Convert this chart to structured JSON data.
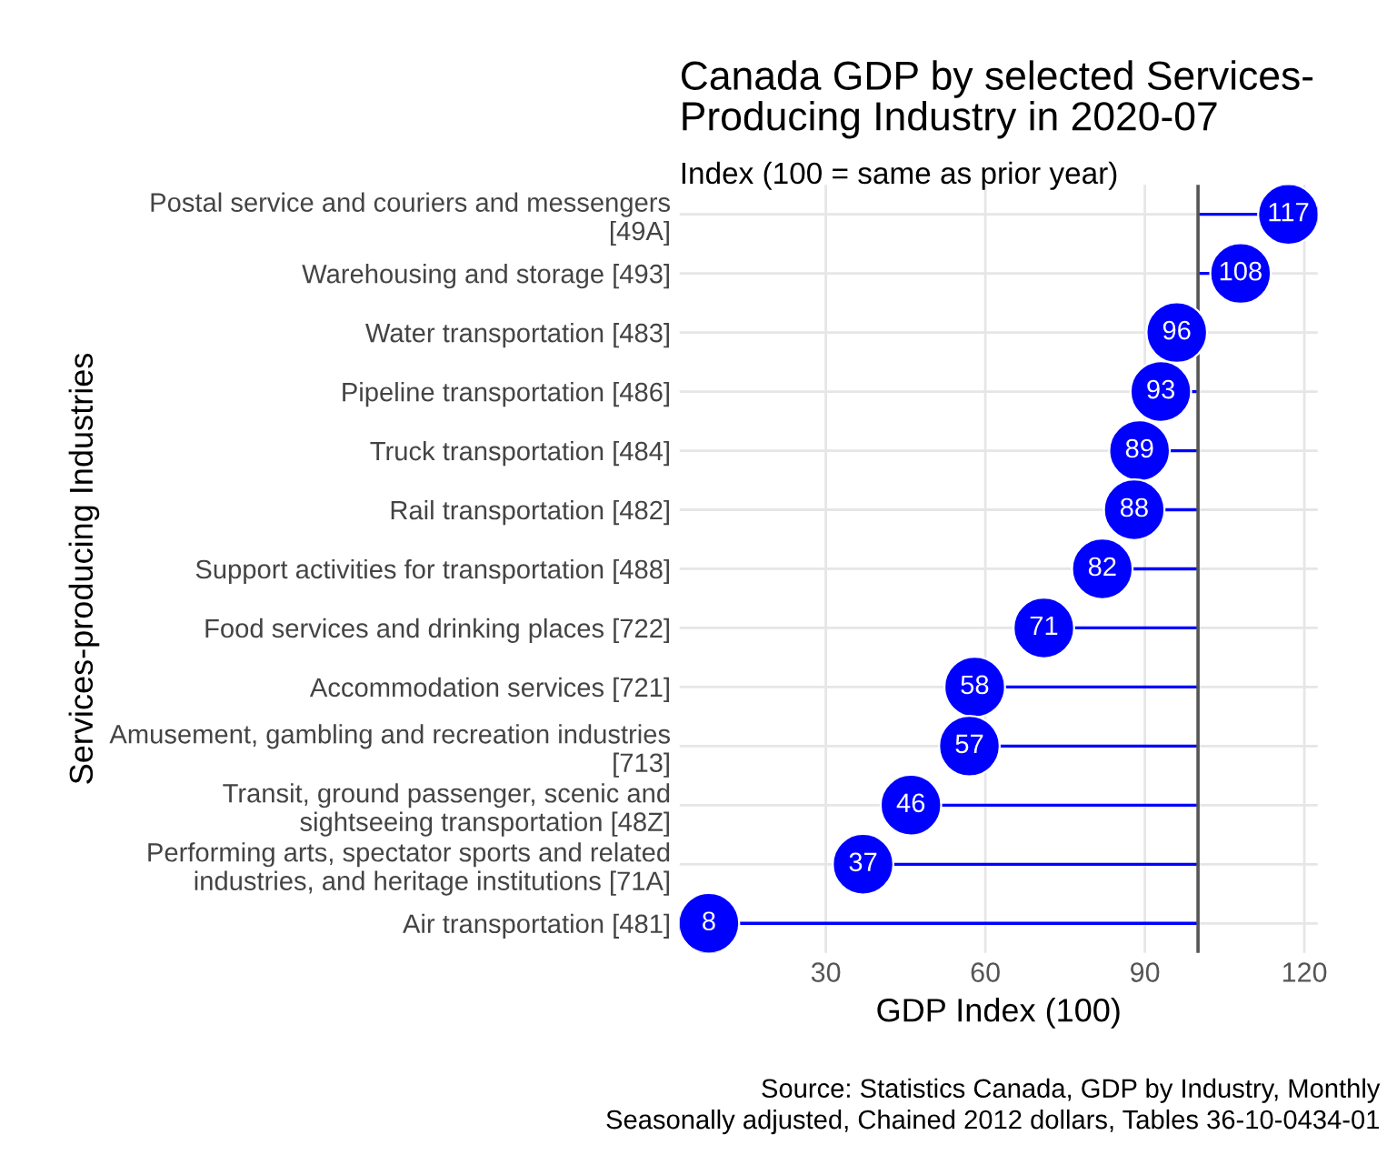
{
  "chart_data": {
    "type": "lollipop",
    "orientation": "horizontal",
    "title": "Canada GDP by selected Services-\nProducing Industry in 2020-07",
    "subtitle": "Index (100 = same as prior year)",
    "xlabel": "GDP Index (100)",
    "ylabel": "Services-producing Industries",
    "categories": [
      "Postal service and couriers and messengers\n[49A]",
      "Warehousing and storage [493]",
      "Water transportation [483]",
      "Pipeline transportation [486]",
      "Truck transportation [484]",
      "Rail transportation [482]",
      "Support activities for transportation [488]",
      "Food services and drinking places [722]",
      "Accommodation services [721]",
      "Amusement, gambling and recreation industries\n[713]",
      "Transit, ground passenger, scenic and\nsightseeing transportation [48Z]",
      "Performing arts, spectator sports and related\nindustries, and heritage institutions [71A]",
      "Air transportation [481]"
    ],
    "values": [
      117,
      108,
      96,
      93,
      89,
      88,
      82,
      71,
      58,
      57,
      46,
      37,
      8
    ],
    "color": "#0000ff",
    "data_labels": true,
    "marker": "circle",
    "xlim": [
      2.5,
      122.5
    ],
    "xticks": [
      30,
      60,
      90,
      120
    ],
    "grid": true,
    "ref_lines": [
      {
        "axis": "x",
        "value": 100,
        "color": "#555555"
      }
    ],
    "annotations": [
      "Source: Statistics Canada, GDP by Industry, Monthly",
      "Seasonally adjusted, Chained 2012 dollars, Tables 36-10-0434-01"
    ]
  }
}
